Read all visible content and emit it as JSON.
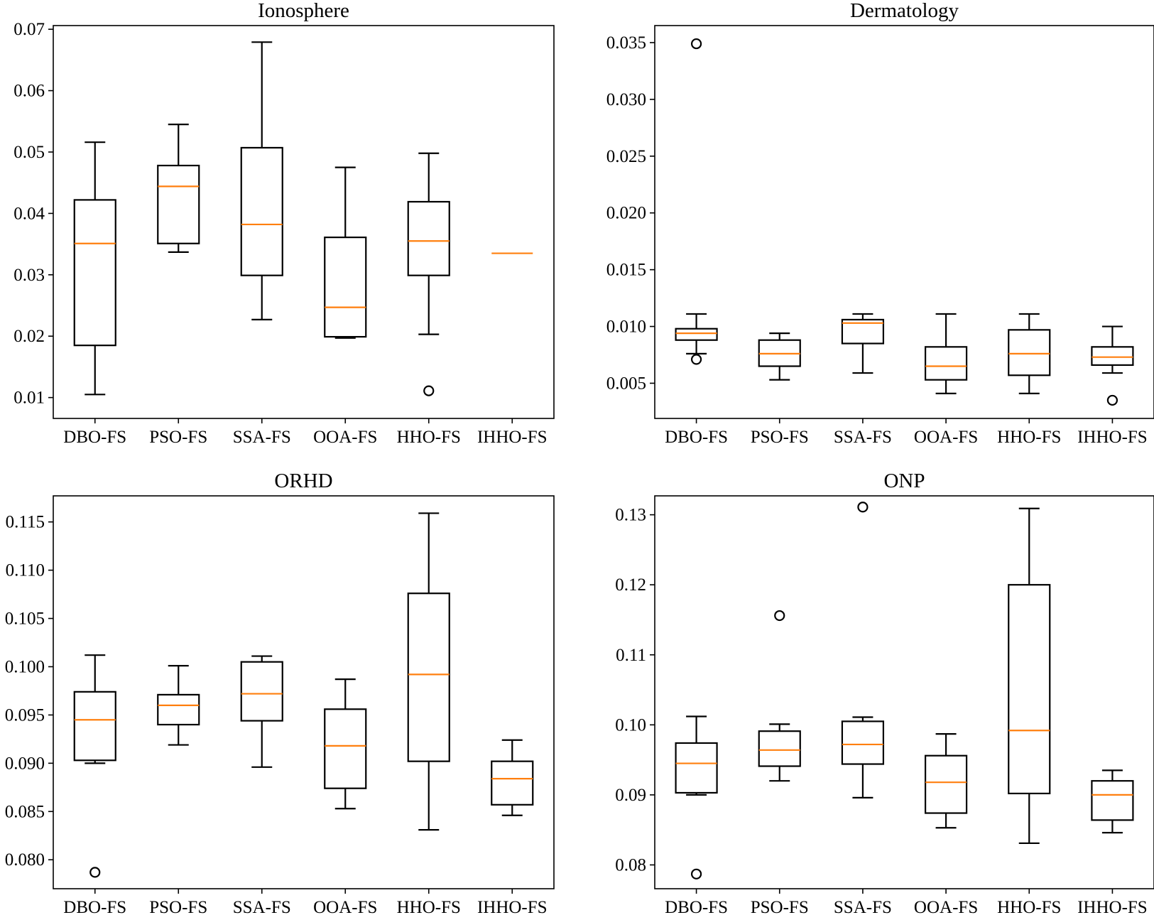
{
  "chart_data": [
    {
      "type": "boxplot",
      "title": "Ionosphere",
      "categories": [
        "DBO-FS",
        "PSO-FS",
        "SSA-FS",
        "OOA-FS",
        "HHO-FS",
        "IHHO-FS"
      ],
      "yticks": [
        "0.01",
        "0.02",
        "0.03",
        "0.04",
        "0.05",
        "0.06",
        "0.07"
      ],
      "ylim": [
        0.0066,
        0.0706
      ],
      "boxes": [
        {
          "whislo": 0.0105,
          "q1": 0.0185,
          "med": 0.0351,
          "q3": 0.0422,
          "whishi": 0.0516,
          "fliers": []
        },
        {
          "whislo": 0.0337,
          "q1": 0.0351,
          "med": 0.0444,
          "q3": 0.0478,
          "whishi": 0.0545,
          "fliers": []
        },
        {
          "whislo": 0.0227,
          "q1": 0.0299,
          "med": 0.0382,
          "q3": 0.0507,
          "whishi": 0.0679,
          "fliers": []
        },
        {
          "whislo": 0.0197,
          "q1": 0.0199,
          "med": 0.0247,
          "q3": 0.0361,
          "whishi": 0.0475,
          "fliers": []
        },
        {
          "whislo": 0.0203,
          "q1": 0.0299,
          "med": 0.0355,
          "q3": 0.0419,
          "whishi": 0.0498,
          "fliers": [
            0.0111
          ]
        },
        {
          "whislo": 0.0335,
          "q1": 0.0335,
          "med": 0.0335,
          "q3": 0.0335,
          "whishi": 0.0335,
          "fliers": []
        }
      ]
    },
    {
      "type": "boxplot",
      "title": "Dermatology",
      "categories": [
        "DBO-FS",
        "PSO-FS",
        "SSA-FS",
        "OOA-FS",
        "HHO-FS",
        "IHHO-FS"
      ],
      "yticks": [
        "0.005",
        "0.010",
        "0.015",
        "0.020",
        "0.025",
        "0.030",
        "0.035"
      ],
      "ylim": [
        0.0019,
        0.0365
      ],
      "boxes": [
        {
          "whislo": 0.0076,
          "q1": 0.0088,
          "med": 0.0094,
          "q3": 0.0098,
          "whishi": 0.0111,
          "fliers": [
            0.0349,
            0.0071
          ]
        },
        {
          "whislo": 0.0053,
          "q1": 0.0065,
          "med": 0.0076,
          "q3": 0.0088,
          "whishi": 0.0094,
          "fliers": []
        },
        {
          "whislo": 0.0059,
          "q1": 0.0085,
          "med": 0.0103,
          "q3": 0.0106,
          "whishi": 0.0111,
          "fliers": []
        },
        {
          "whislo": 0.0041,
          "q1": 0.0053,
          "med": 0.0065,
          "q3": 0.0082,
          "whishi": 0.0111,
          "fliers": []
        },
        {
          "whislo": 0.0041,
          "q1": 0.0057,
          "med": 0.0076,
          "q3": 0.0097,
          "whishi": 0.0111,
          "fliers": []
        },
        {
          "whislo": 0.0059,
          "q1": 0.0066,
          "med": 0.0073,
          "q3": 0.0082,
          "whishi": 0.01,
          "fliers": [
            0.0035
          ]
        }
      ]
    },
    {
      "type": "boxplot",
      "title": "ORHD",
      "categories": [
        "DBO-FS",
        "PSO-FS",
        "SSA-FS",
        "OOA-FS",
        "HHO-FS",
        "IHHO-FS"
      ],
      "yticks": [
        "0.080",
        "0.085",
        "0.090",
        "0.095",
        "0.100",
        "0.105",
        "0.110",
        "0.115"
      ],
      "ylim": [
        0.077,
        0.1177
      ],
      "boxes": [
        {
          "whislo": 0.09,
          "q1": 0.0903,
          "med": 0.0945,
          "q3": 0.0974,
          "whishi": 0.1012,
          "fliers": [
            0.0787
          ]
        },
        {
          "whislo": 0.0919,
          "q1": 0.094,
          "med": 0.096,
          "q3": 0.0971,
          "whishi": 0.1001,
          "fliers": []
        },
        {
          "whislo": 0.0896,
          "q1": 0.0944,
          "med": 0.0972,
          "q3": 0.1005,
          "whishi": 0.1011,
          "fliers": []
        },
        {
          "whislo": 0.0853,
          "q1": 0.0874,
          "med": 0.0918,
          "q3": 0.0956,
          "whishi": 0.0987,
          "fliers": []
        },
        {
          "whislo": 0.0831,
          "q1": 0.0902,
          "med": 0.0992,
          "q3": 0.1076,
          "whishi": 0.1159,
          "fliers": []
        },
        {
          "whislo": 0.0846,
          "q1": 0.0857,
          "med": 0.0884,
          "q3": 0.0902,
          "whishi": 0.0924,
          "fliers": []
        }
      ]
    },
    {
      "type": "boxplot",
      "title": "ONP",
      "categories": [
        "DBO-FS",
        "PSO-FS",
        "SSA-FS",
        "OOA-FS",
        "HHO-FS",
        "IHHO-FS"
      ],
      "yticks": [
        "0.08",
        "0.09",
        "0.10",
        "0.11",
        "0.12",
        "0.13"
      ],
      "ylim": [
        0.0766,
        0.1327
      ],
      "boxes": [
        {
          "whislo": 0.09,
          "q1": 0.0903,
          "med": 0.0945,
          "q3": 0.0974,
          "whishi": 0.1012,
          "fliers": [
            0.0787
          ]
        },
        {
          "whislo": 0.092,
          "q1": 0.0941,
          "med": 0.0964,
          "q3": 0.0991,
          "whishi": 0.1001,
          "fliers": [
            0.1156
          ]
        },
        {
          "whislo": 0.0896,
          "q1": 0.0944,
          "med": 0.0972,
          "q3": 0.1005,
          "whishi": 0.1011,
          "fliers": [
            0.1311
          ]
        },
        {
          "whislo": 0.0853,
          "q1": 0.0874,
          "med": 0.0918,
          "q3": 0.0956,
          "whishi": 0.0987,
          "fliers": []
        },
        {
          "whislo": 0.0831,
          "q1": 0.0902,
          "med": 0.0992,
          "q3": 0.12,
          "whishi": 0.1309,
          "fliers": []
        },
        {
          "whislo": 0.0846,
          "q1": 0.0864,
          "med": 0.09,
          "q3": 0.092,
          "whishi": 0.0935,
          "fliers": []
        }
      ]
    }
  ]
}
